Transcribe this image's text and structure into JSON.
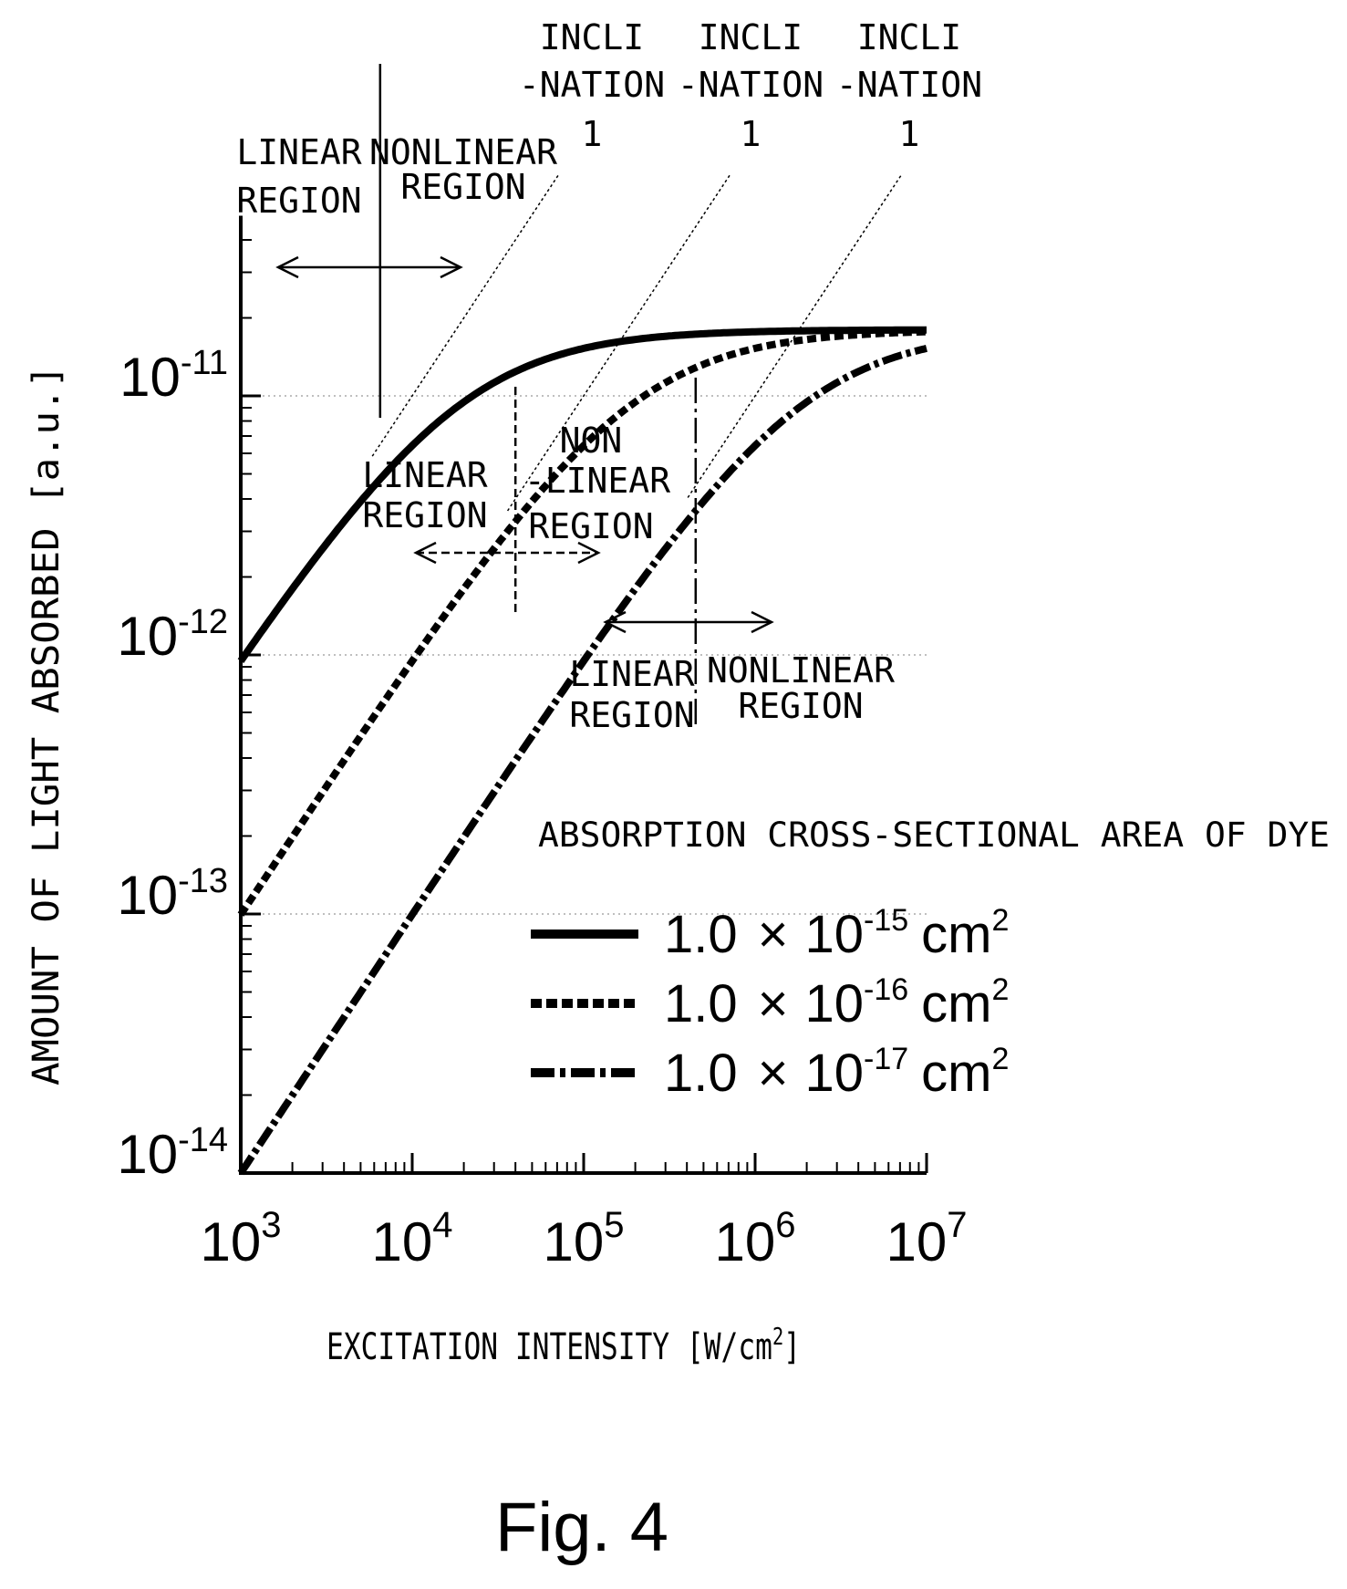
{
  "chart_data": {
    "type": "line",
    "x_scale": "log",
    "y_scale": "log",
    "xlabel": "EXCITATION INTENSITY [W/cm",
    "xlabel_sup": "2",
    "xlabel_end": "]",
    "ylabel": "AMOUNT OF LIGHT ABSORBED [a.u.]",
    "xlim": [
      1000,
      10000000
    ],
    "ylim": [
      1e-14,
      4.5e-11
    ],
    "x_ticks": [
      {
        "value": 1000,
        "base": "10",
        "exp": "3"
      },
      {
        "value": 10000,
        "base": "10",
        "exp": "4"
      },
      {
        "value": 100000,
        "base": "10",
        "exp": "5"
      },
      {
        "value": 1000000,
        "base": "10",
        "exp": "6"
      },
      {
        "value": 10000000,
        "base": "10",
        "exp": "7"
      }
    ],
    "y_ticks": [
      {
        "value": 1e-14,
        "base": "10",
        "exp": "-14"
      },
      {
        "value": 1e-13,
        "base": "10",
        "exp": "-13"
      },
      {
        "value": 1e-12,
        "base": "10",
        "exp": "-12"
      },
      {
        "value": 1e-11,
        "base": "10",
        "exp": "-11"
      }
    ],
    "grid": "dotted horizontal at decades",
    "legend": {
      "title": "ABSORPTION CROSS-SECTIONAL AREA OF DYE",
      "placement": "lower-right",
      "entries": [
        {
          "mantissa": "1.0",
          "times": "×",
          "base": "10",
          "exp": "-15",
          "unit": "cm",
          "unit_exp": "2"
        },
        {
          "mantissa": "1.0",
          "times": "×",
          "base": "10",
          "exp": "-16",
          "unit": "cm",
          "unit_exp": "2"
        },
        {
          "mantissa": "1.0",
          "times": "×",
          "base": "10",
          "exp": "-17",
          "unit": "cm",
          "unit_exp": "2"
        }
      ]
    },
    "series": [
      {
        "style": "solid",
        "sigma": 1e-15,
        "y0": 1e-12,
        "xs": 18000,
        "saturation": 4.5e-11,
        "x": [
          1000,
          3000,
          10000,
          30000,
          100000,
          300000,
          1000000,
          3000000,
          10000000
        ],
        "y": [
          1e-12,
          2.9e-12,
          8.3e-12,
          1.8e-11,
          3.2e-11,
          4e-11,
          4.4e-11,
          4.5e-11,
          4.5e-11
        ]
      },
      {
        "style": "dashed",
        "sigma": 1e-16,
        "y0": 1e-13,
        "xs": 180000,
        "saturation": 4.5e-11,
        "x": [
          1000,
          10000,
          30000,
          100000,
          300000,
          1000000,
          3000000,
          10000000
        ],
        "y": [
          1e-13,
          9.9e-13,
          2.9e-12,
          8.3e-12,
          1.8e-11,
          3.2e-11,
          4e-11,
          4.4e-11
        ]
      },
      {
        "style": "dash-dot",
        "sigma": 1e-17,
        "y0": 1e-14,
        "xs": 1800000,
        "saturation": 4.5e-11,
        "x": [
          1000,
          10000,
          100000,
          300000,
          1000000,
          3000000,
          10000000
        ],
        "y": [
          1e-14,
          1e-13,
          9.9e-13,
          2.9e-12,
          8.3e-12,
          1.8e-11,
          3.2e-11
        ]
      }
    ],
    "annotations": {
      "inclination_labels": [
        {
          "line1": "INCLI",
          "line2": "-NATION",
          "line3": "1"
        },
        {
          "line1": "INCLI",
          "line2": "-NATION",
          "line3": "1"
        },
        {
          "line1": "INCLI",
          "line2": "-NATION",
          "line3": "1"
        }
      ],
      "region_labels": [
        {
          "line1": "LINEAR",
          "line2": "REGION"
        },
        {
          "line1": "NONLINEAR",
          "line2": "REGION"
        },
        {
          "line1": "LINEAR",
          "line2": "REGION"
        },
        {
          "line1": "NON",
          "line2": "-LINEAR",
          "line3": "REGION"
        },
        {
          "line1": "LINEAR",
          "line2": "REGION"
        },
        {
          "line1": "NONLINEAR",
          "line2": "REGION"
        }
      ],
      "boundaries_x": [
        6500,
        40000,
        450000
      ]
    }
  },
  "figure_label": "Fig. 4"
}
